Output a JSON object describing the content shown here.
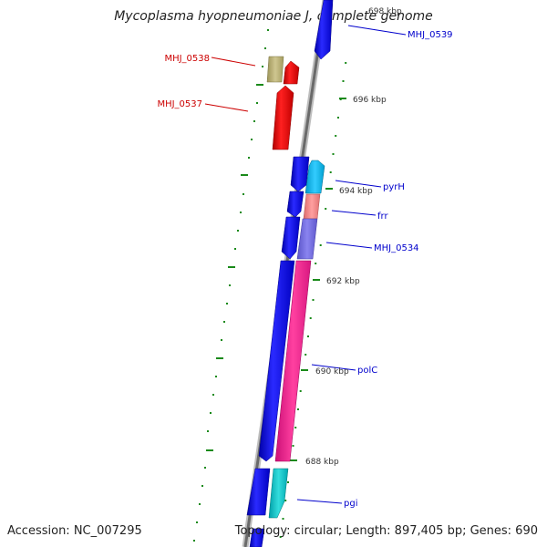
{
  "title": "Mycoplasma hyopneumoniae J, complete genome",
  "footer": {
    "accession": "Accession: NC_007295",
    "topology": "Topology: circular; Length: 897,405 bp; Genes: 690"
  },
  "ticks": [
    "698 kbp",
    "696 kbp",
    "694 kbp",
    "692 kbp",
    "690 kbp",
    "688 kbp"
  ],
  "genes": [
    {
      "name": "MHJ_0539",
      "color": "#0000cc"
    },
    {
      "name": "MHJ_0538",
      "color": "#cc0000"
    },
    {
      "name": "MHJ_0537",
      "color": "#cc0000"
    },
    {
      "name": "pyrH",
      "color": "#0000cc"
    },
    {
      "name": "frr",
      "color": "#0000cc"
    },
    {
      "name": "MHJ_0534",
      "color": "#0000cc"
    },
    {
      "name": "polC",
      "color": "#0000cc"
    },
    {
      "name": "pgi",
      "color": "#0000cc"
    }
  ]
}
